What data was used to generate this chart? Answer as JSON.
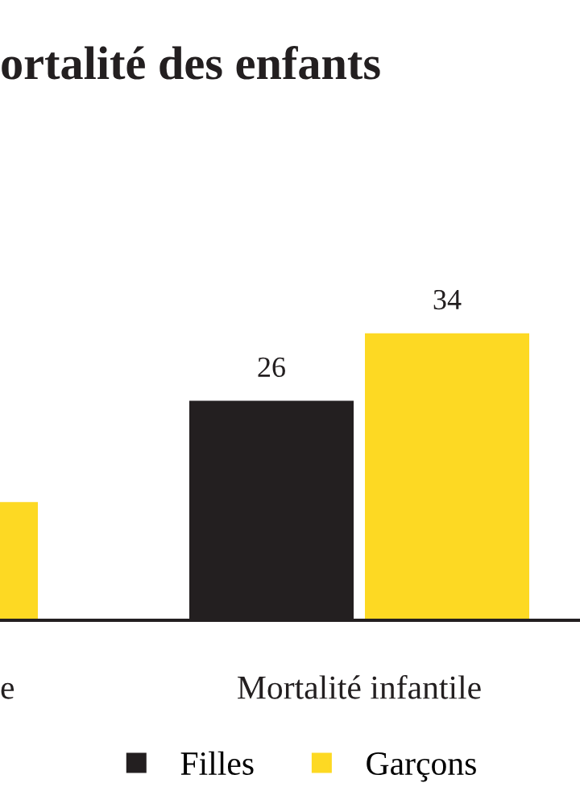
{
  "chart_data": {
    "type": "bar",
    "title": "ortalité des enfants",
    "categories": [
      "e",
      "Mortalité infantile"
    ],
    "series": [
      {
        "name": "Filles",
        "color": "#231f20",
        "values": [
          null,
          26
        ],
        "value_labels": [
          null,
          "26"
        ]
      },
      {
        "name": "Garçons",
        "color": "#fdd923",
        "values": [
          14,
          34
        ],
        "value_labels": [
          null,
          "34"
        ]
      }
    ],
    "legend": "bottom"
  }
}
